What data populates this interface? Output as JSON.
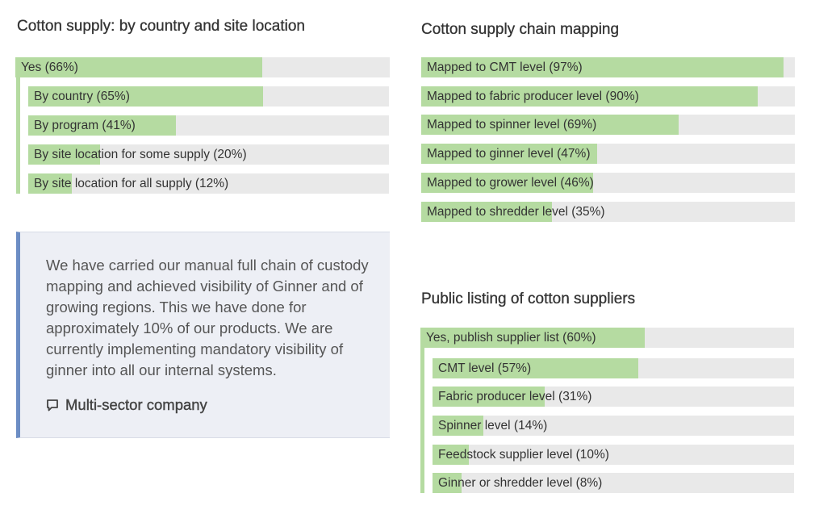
{
  "chart_data": [
    {
      "type": "bar",
      "title": "Cotton supply: by country and site location",
      "categories": [
        "Yes (66%)",
        "By country (65%)",
        "By program (41%)",
        "By site location for some supply (20%)",
        "By site location for all supply (12%)"
      ],
      "values": [
        66,
        65,
        41,
        20,
        12
      ],
      "ylim": [
        0,
        100
      ]
    },
    {
      "type": "bar",
      "title": "Cotton supply chain mapping",
      "categories": [
        "Mapped to CMT level (97%)",
        "Mapped to fabric producer level (90%)",
        "Mapped to spinner level (69%)",
        "Mapped to ginner level (47%)",
        "Mapped to grower level (46%)",
        "Mapped to shredder level (35%)"
      ],
      "values": [
        97,
        90,
        69,
        47,
        46,
        35
      ],
      "ylim": [
        0,
        100
      ]
    },
    {
      "type": "bar",
      "title": "Public listing of cotton suppliers",
      "categories": [
        "Yes, publish supplier list (60%)",
        "CMT level (57%)",
        "Fabric producer level (31%)",
        "Spinner level (14%)",
        "Feedstock supplier level (10%)",
        "Ginner or shredder level (8%)"
      ],
      "values": [
        60,
        57,
        31,
        14,
        10,
        8
      ],
      "ylim": [
        0,
        100
      ]
    }
  ],
  "quote": {
    "text": "We have carried our manual full chain of custody mapping and achieved visibility of Ginner and of growing regions. This we have done for approximately 10% of our products. We are currently implementing mandatory visibility of ginner into all our internal systems.",
    "source": "Multi-sector company",
    "icon": "speech-bubble-icon"
  },
  "colors": {
    "bar_fill": "#b5dba1",
    "bar_track": "#e9e9e9",
    "quote_background": "#edeff5",
    "quote_border": "#6c8dc4"
  }
}
